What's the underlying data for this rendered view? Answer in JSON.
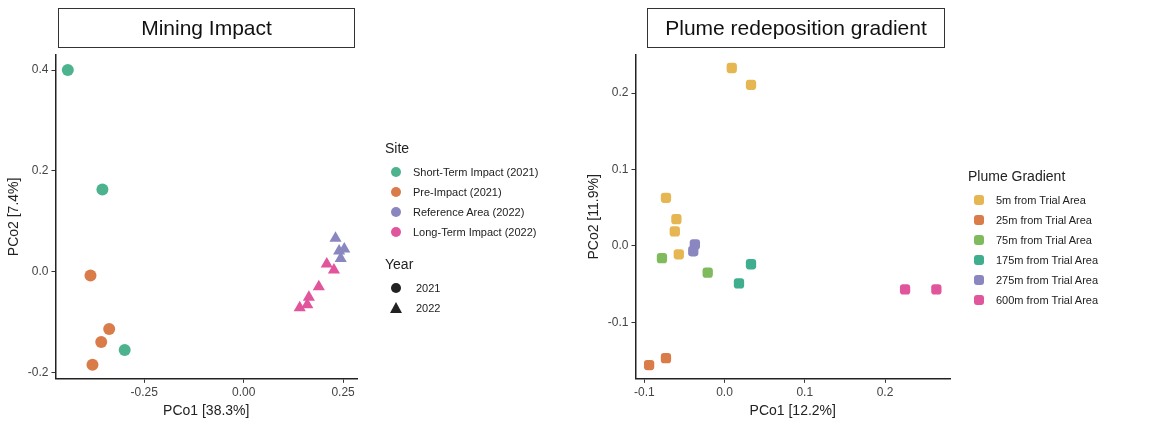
{
  "chart_data": [
    {
      "type": "scatter",
      "title": "Mining Impact",
      "xlabel": "PCo1 [38.3%]",
      "ylabel": "PCo2 [7.4%]",
      "legend_title": "Site",
      "legend": "right",
      "grid": false,
      "xlim": [
        -0.473,
        0.285
      ],
      "xticks": [
        -0.25,
        {
          "value": 0,
          "label": "0.00"
        },
        0.25
      ],
      "ylim": [
        -0.213,
        0.43
      ],
      "yticks": [
        -0.2,
        {
          "value": 0,
          "label": "0.0"
        },
        0.2,
        0.4
      ],
      "annotations": [
        "Year",
        "2021",
        "2022"
      ],
      "series": [
        {
          "name": "Short-Term Impact (2021)",
          "color": "#4db38e",
          "marker": "circle",
          "x": [
            -0.442,
            -0.355,
            -0.299
          ],
          "values": [
            0.4,
            0.163,
            -0.156
          ]
        },
        {
          "name": "Pre-Impact (2021)",
          "color": "#d97c4a",
          "marker": "circle",
          "x": [
            -0.385,
            -0.338,
            -0.358,
            -0.38
          ],
          "values": [
            -0.008,
            -0.114,
            -0.14,
            -0.185
          ]
        },
        {
          "name": "Reference Area (2022)",
          "color": "#8a87c0",
          "marker": "triangle",
          "x": [
            0.231,
            0.253,
            0.24,
            0.244
          ],
          "values": [
            0.066,
            0.045,
            0.041,
            0.026
          ]
        },
        {
          "name": "Long-Term Impact (2022)",
          "color": "#e0559b",
          "marker": "triangle",
          "x": [
            0.209,
            0.227,
            0.189,
            0.164,
            0.16,
            0.141
          ],
          "values": [
            0.015,
            0.003,
            -0.03,
            -0.051,
            -0.066,
            -0.072
          ]
        }
      ]
    },
    {
      "type": "scatter",
      "title": "Plume redeposition gradient",
      "xlabel": "PCo1 [12.2%]",
      "ylabel": "PCo2 [11.9%]",
      "legend_title": "Plume Gradient",
      "legend": "right",
      "grid": false,
      "marker": "square",
      "xlim": [
        -0.111,
        0.281
      ],
      "xticks": [
        -0.1,
        {
          "value": 0,
          "label": "0.0"
        },
        0.1,
        0.2
      ],
      "ylim": [
        -0.174,
        0.25
      ],
      "yticks": [
        -0.1,
        {
          "value": 0,
          "label": "0.0"
        },
        0.1,
        0.2
      ],
      "series": [
        {
          "name": "5m from Trial Area",
          "color": "#e5b651",
          "x": [
            0.009,
            0.033,
            -0.073,
            -0.06,
            -0.062,
            -0.057
          ],
          "values": [
            0.233,
            0.211,
            0.063,
            0.035,
            0.019,
            -0.011
          ]
        },
        {
          "name": "25m from Trial Area",
          "color": "#d97c4a",
          "x": [
            -0.094,
            -0.073
          ],
          "values": [
            -0.156,
            -0.147
          ]
        },
        {
          "name": "75m from Trial Area",
          "color": "#7fba5c",
          "x": [
            -0.078,
            -0.021
          ],
          "values": [
            -0.016,
            -0.035
          ]
        },
        {
          "name": "175m from Trial Area",
          "color": "#3fae8e",
          "x": [
            0.033,
            0.018
          ],
          "values": [
            -0.024,
            -0.049
          ]
        },
        {
          "name": "275m from Trial Area",
          "color": "#8a87c0",
          "x": [
            -0.037,
            -0.039
          ],
          "values": [
            0.002,
            -0.007
          ]
        },
        {
          "name": "600m from Trial Area",
          "color": "#e0559b",
          "x": [
            0.225,
            0.264
          ],
          "values": [
            -0.057,
            -0.057
          ]
        }
      ]
    }
  ]
}
